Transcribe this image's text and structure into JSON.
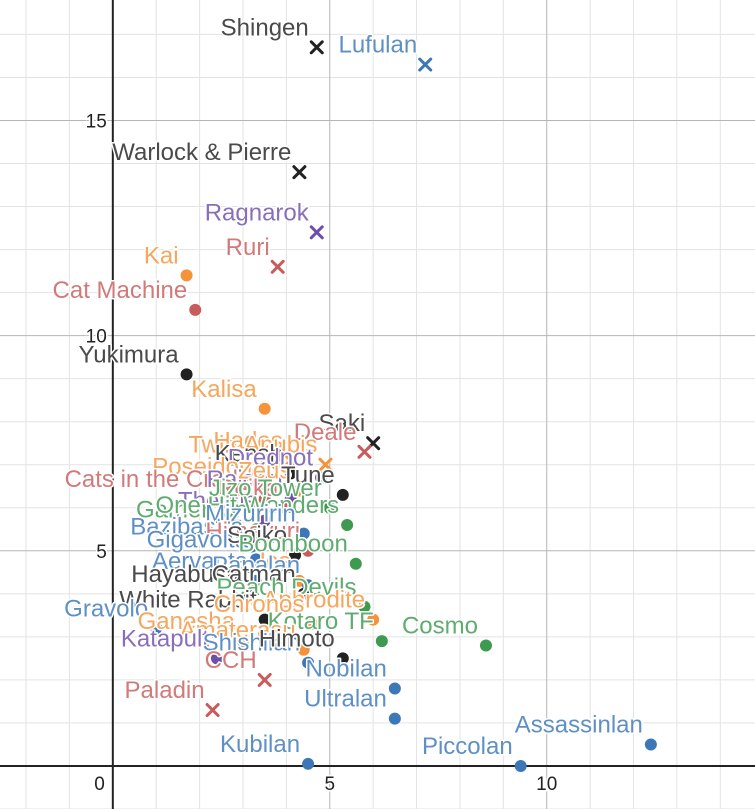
{
  "chart_data": {
    "type": "scatter",
    "title": "",
    "xlabel": "",
    "ylabel": "",
    "xlim": [
      -2.6,
      14.8
    ],
    "ylim": [
      -1.0,
      17.8
    ],
    "grid": true,
    "x_ticks": [
      0,
      5,
      10
    ],
    "y_ticks": [
      5,
      10,
      15
    ],
    "colors": {
      "black": "#222222",
      "blue": "#3c78b8",
      "orange": "#f5933a",
      "red": "#c85c5c",
      "green": "#3d9a50",
      "purple": "#6e4fa8"
    },
    "points": [
      {
        "label": "Shingen",
        "x": 4.7,
        "y": 16.7,
        "marker": "x",
        "color": "black"
      },
      {
        "label": "Lufulan",
        "x": 7.2,
        "y": 16.3,
        "marker": "x",
        "color": "blue"
      },
      {
        "label": "Warlock & Pierre",
        "x": 4.3,
        "y": 13.8,
        "marker": "x",
        "color": "black"
      },
      {
        "label": "Ragnarok",
        "x": 4.7,
        "y": 12.4,
        "marker": "x",
        "color": "purple"
      },
      {
        "label": "Kai",
        "x": 1.7,
        "y": 11.4,
        "marker": "o",
        "color": "orange"
      },
      {
        "label": "Ruri",
        "x": 3.8,
        "y": 11.6,
        "marker": "x",
        "color": "red"
      },
      {
        "label": "Cat Machine",
        "x": 1.9,
        "y": 10.6,
        "marker": "o",
        "color": "red"
      },
      {
        "label": "Yukimura",
        "x": 1.7,
        "y": 9.1,
        "marker": "o",
        "color": "black"
      },
      {
        "label": "Kalisa",
        "x": 3.5,
        "y": 8.3,
        "marker": "o",
        "color": "orange"
      },
      {
        "label": "Saki",
        "x": 6.0,
        "y": 7.5,
        "marker": "x",
        "color": "black"
      },
      {
        "label": "Deale",
        "x": 5.8,
        "y": 7.3,
        "marker": "x",
        "color": "red"
      },
      {
        "label": "Twinsta",
        "x": 3.8,
        "y": 7.0,
        "marker": "o",
        "color": "orange"
      },
      {
        "label": "Hades",
        "x": 4.1,
        "y": 7.1,
        "marker": "x",
        "color": "orange"
      },
      {
        "label": "Anubis",
        "x": 4.9,
        "y": 7.0,
        "marker": "x",
        "color": "orange"
      },
      {
        "label": "Kensh",
        "x": 4.1,
        "y": 6.8,
        "marker": "o",
        "color": "black"
      },
      {
        "label": "Drednot",
        "x": 4.8,
        "y": 6.7,
        "marker": "o",
        "color": "purple"
      },
      {
        "label": "Poseidon",
        "x": 3.4,
        "y": 6.5,
        "marker": "o",
        "color": "orange"
      },
      {
        "label": "Cats in the Cradle",
        "x": 3.5,
        "y": 6.2,
        "marker": "o",
        "color": "red"
      },
      {
        "label": "Raiden",
        "x": 4.1,
        "y": 6.2,
        "marker": "o",
        "color": "purple"
      },
      {
        "label": "Zeus",
        "x": 4.3,
        "y": 6.4,
        "marker": "o",
        "color": "orange"
      },
      {
        "label": "Tune",
        "x": 5.3,
        "y": 6.3,
        "marker": "o",
        "color": "black"
      },
      {
        "label": "Reika",
        "x": 4.0,
        "y": 6.0,
        "marker": "o",
        "color": "red"
      },
      {
        "label": "Themis",
        "x": 3.5,
        "y": 5.7,
        "marker": "o",
        "color": "purple"
      },
      {
        "label": "Jizo Tower",
        "x": 5.0,
        "y": 6.0,
        "marker": "o",
        "color": "green"
      },
      {
        "label": "Gamercon",
        "x": 3.3,
        "y": 5.5,
        "marker": "o",
        "color": "green"
      },
      {
        "label": "One Hit Wonders",
        "x": 5.4,
        "y": 5.6,
        "marker": "o",
        "color": "green"
      },
      {
        "label": "Mizuririn",
        "x": 4.4,
        "y": 5.4,
        "marker": "o",
        "color": "blue"
      },
      {
        "label": "Bazibastra",
        "x": 3.2,
        "y": 5.1,
        "marker": "o",
        "color": "blue"
      },
      {
        "label": "Himeyuri",
        "x": 4.5,
        "y": 5.0,
        "marker": "o",
        "color": "red"
      },
      {
        "label": "Gigavolta",
        "x": 3.3,
        "y": 4.8,
        "marker": "o",
        "color": "blue"
      },
      {
        "label": "Saiko",
        "x": 4.2,
        "y": 4.9,
        "marker": "o",
        "color": "black"
      },
      {
        "label": "Boonboon",
        "x": 5.6,
        "y": 4.7,
        "marker": "o",
        "color": "green"
      },
      {
        "label": "Aervanta",
        "x": 3.3,
        "y": 4.3,
        "marker": "o",
        "color": "blue"
      },
      {
        "label": "Ice",
        "x": 4.3,
        "y": 4.3,
        "marker": "o",
        "color": "orange"
      },
      {
        "label": "Papalan",
        "x": 4.5,
        "y": 4.2,
        "marker": "o",
        "color": "blue"
      },
      {
        "label": "Hayabusa",
        "x": 3.1,
        "y": 4.0,
        "marker": "o",
        "color": "black"
      },
      {
        "label": "Catman",
        "x": 4.4,
        "y": 4.0,
        "marker": "o",
        "color": "black"
      },
      {
        "label": "Peach Devils",
        "x": 5.8,
        "y": 3.7,
        "marker": "o",
        "color": "green"
      },
      {
        "label": "White Rabbit",
        "x": 3.5,
        "y": 3.4,
        "marker": "o",
        "color": "black"
      },
      {
        "label": "Aphrodite",
        "x": 6.0,
        "y": 3.4,
        "marker": "o",
        "color": "orange"
      },
      {
        "label": "Gravolo",
        "x": 1.0,
        "y": 3.2,
        "marker": "o",
        "color": "blue"
      },
      {
        "label": "Chronos",
        "x": 4.6,
        "y": 3.3,
        "marker": "o",
        "color": "orange"
      },
      {
        "label": "Ganesha",
        "x": 3.0,
        "y": 2.9,
        "marker": "o",
        "color": "orange"
      },
      {
        "label": "Kotaro TF",
        "x": 6.2,
        "y": 2.9,
        "marker": "o",
        "color": "green"
      },
      {
        "label": "Cosmo",
        "x": 8.6,
        "y": 2.8,
        "marker": "o",
        "color": "green"
      },
      {
        "label": "Amaterasu",
        "x": 4.4,
        "y": 2.7,
        "marker": "o",
        "color": "orange"
      },
      {
        "label": "Katapult",
        "x": 2.4,
        "y": 2.5,
        "marker": "o",
        "color": "purple"
      },
      {
        "label": "Shishilan",
        "x": 4.5,
        "y": 2.4,
        "marker": "o",
        "color": "blue"
      },
      {
        "label": "Himoto",
        "x": 5.3,
        "y": 2.5,
        "marker": "o",
        "color": "black"
      },
      {
        "label": "Nobilan",
        "x": 6.5,
        "y": 1.8,
        "marker": "o",
        "color": "blue"
      },
      {
        "label": "CCH",
        "x": 3.5,
        "y": 2.0,
        "marker": "x",
        "color": "red"
      },
      {
        "label": "Paladin",
        "x": 2.3,
        "y": 1.3,
        "marker": "x",
        "color": "red"
      },
      {
        "label": "Ultralan",
        "x": 6.5,
        "y": 1.1,
        "marker": "o",
        "color": "blue"
      },
      {
        "label": "Assassinlan",
        "x": 12.4,
        "y": 0.5,
        "marker": "o",
        "color": "blue"
      },
      {
        "label": "Kubilan",
        "x": 4.5,
        "y": 0.05,
        "marker": "o",
        "color": "blue"
      },
      {
        "label": "Piccolan",
        "x": 9.4,
        "y": 0.0,
        "marker": "o",
        "color": "blue"
      }
    ]
  }
}
